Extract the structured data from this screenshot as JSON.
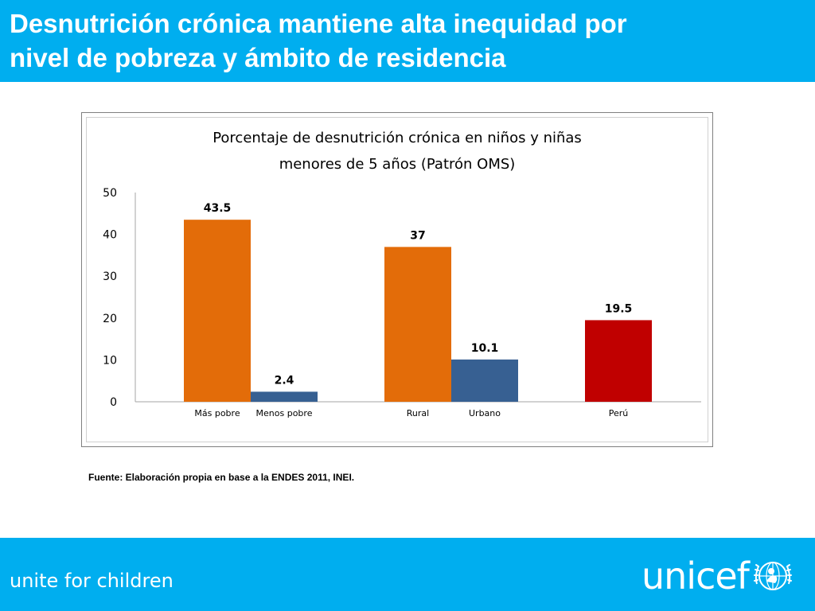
{
  "header": {
    "title_line1": "Desnutrición crónica mantiene alta inequidad por",
    "title_line2": "nivel de pobreza y ámbito de residencia"
  },
  "chart_data": {
    "type": "bar",
    "title_line1": "Porcentaje de desnutrición crónica en niños y niñas",
    "title_line2": "menores de 5 años (Patrón OMS)",
    "categories": [
      "Más pobre",
      "Menos pobre",
      "Rural",
      "Urbano",
      "Perú"
    ],
    "values": [
      43.5,
      2.4,
      37,
      10.1,
      19.5
    ],
    "value_labels": [
      "43.5",
      "2.4",
      "37",
      "10.1",
      "19.5"
    ],
    "groups": [
      [
        0,
        1
      ],
      [
        2,
        3
      ],
      [
        4
      ]
    ],
    "colors": [
      "#e36c09",
      "#376092",
      "#e36c09",
      "#376092",
      "#c00000"
    ],
    "ylim": [
      0,
      50
    ],
    "yticks": [
      0,
      10,
      20,
      30,
      40,
      50
    ],
    "xlabel": "",
    "ylabel": "",
    "grid": false,
    "legend": "none"
  },
  "source_note": "Fuente: Elaboración propia en base a la ENDES 2011, INEI.",
  "footer": {
    "tagline": "unite for children",
    "logo_text": "unicef",
    "logo_icon": "unicef-emblem-icon"
  }
}
